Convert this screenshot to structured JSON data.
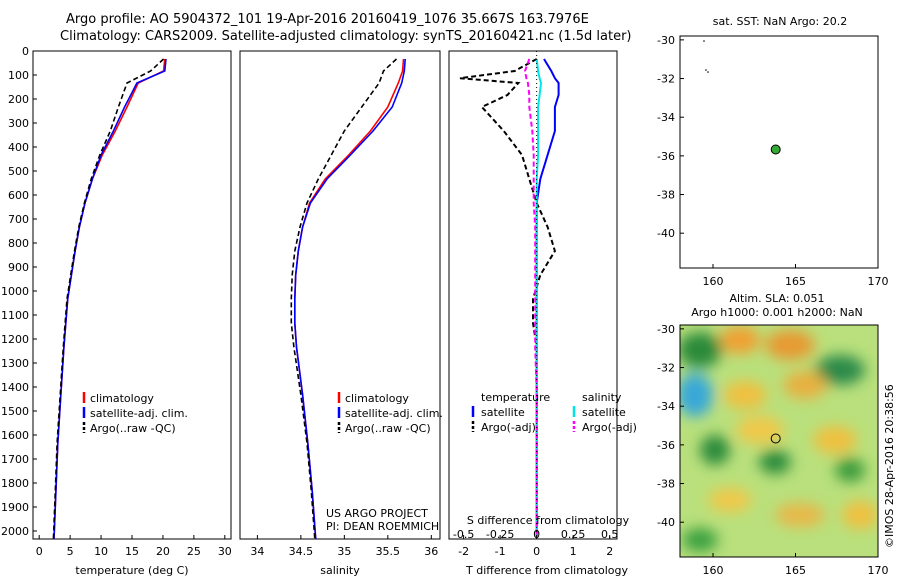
{
  "header": {
    "line1": "Argo profile: AO 5904372_101 19-Apr-2016 20160419_1076 35.667S 163.7976E",
    "line2": "Climatology: CARS2009. Satellite-adjusted climatology: synTS_20160421.nc (1.5d later)"
  },
  "depth_ticks": [
    "0",
    "100",
    "200",
    "300",
    "400",
    "500",
    "600",
    "700",
    "800",
    "900",
    "1000",
    "1100",
    "1200",
    "1300",
    "1400",
    "1500",
    "1600",
    "1700",
    "1800",
    "1900",
    "2000"
  ],
  "legend": {
    "clim": "climatology",
    "sat": "satellite-adj. clim.",
    "argo": "Argo(..raw -QC)",
    "temperature_head": "temperature",
    "salinity_head": "salinity",
    "satellite": "satellite",
    "argo_adj": "Argo(-adj)"
  },
  "credit": {
    "line1": "US ARGO PROJECT",
    "line2": "PI: DEAN ROEMMICH"
  },
  "map1_title": "sat. SST: NaN Argo: 20.2",
  "map2_title1": "Altim. SLA: 0.051",
  "map2_title2": "Argo h1000: 0.001 h2000: NaN",
  "watermark": "©IMOS 28-Apr-2016 20:38:56",
  "colors": {
    "clim": "#ff0000",
    "sat": "#0000ff",
    "argo": "#000000",
    "sal_sat": "#00e5e5",
    "sal_argo": "#ff00ff",
    "marker": "#33aa33"
  },
  "chart_data": [
    {
      "type": "line",
      "title": "",
      "xlabel": "temperature (deg C)",
      "ylabel": "",
      "xlim": [
        -1,
        31
      ],
      "ylim": [
        2000,
        0
      ],
      "xticks": [
        "0",
        "5",
        "10",
        "15",
        "20",
        "25",
        "30"
      ],
      "depth": [
        0,
        50,
        100,
        200,
        300,
        400,
        500,
        600,
        700,
        800,
        900,
        1000,
        1200,
        1400,
        1600,
        1800,
        2000
      ],
      "series": [
        {
          "name": "climatology",
          "values": [
            20.3,
            20.1,
            16.0,
            14.2,
            12.3,
            10.2,
            8.6,
            7.4,
            6.5,
            5.8,
            5.2,
            4.6,
            4.0,
            3.5,
            3.0,
            2.7,
            2.4
          ]
        },
        {
          "name": "satellite-adj. clim.",
          "values": [
            20.5,
            20.3,
            15.8,
            13.8,
            12.0,
            10.0,
            8.6,
            7.4,
            6.5,
            5.8,
            5.2,
            4.6,
            4.0,
            3.5,
            3.0,
            2.7,
            2.4
          ]
        },
        {
          "name": "Argo(..raw -QC)",
          "values": [
            20.1,
            18.0,
            14.2,
            12.8,
            11.5,
            9.8,
            8.4,
            7.3,
            6.4,
            5.7,
            5.1,
            4.5,
            3.9,
            3.4,
            2.9,
            2.6,
            2.3
          ]
        }
      ]
    },
    {
      "type": "line",
      "title": "",
      "xlabel": "salinity",
      "ylabel": "",
      "xlim": [
        33.8,
        36.1
      ],
      "ylim": [
        2000,
        0
      ],
      "xticks": [
        "34",
        "34.5",
        "35",
        "35.5",
        "36"
      ],
      "depth": [
        0,
        50,
        100,
        200,
        300,
        400,
        500,
        600,
        700,
        800,
        900,
        1000,
        1100,
        1200,
        1400,
        1600,
        1800,
        2000
      ],
      "series": [
        {
          "name": "climatology",
          "values": [
            35.68,
            35.67,
            35.62,
            35.5,
            35.3,
            35.05,
            34.78,
            34.6,
            34.52,
            34.47,
            34.44,
            34.43,
            34.43,
            34.45,
            34.52,
            34.58,
            34.63,
            34.67
          ]
        },
        {
          "name": "satellite-adj. clim.",
          "values": [
            35.7,
            35.69,
            35.66,
            35.55,
            35.33,
            35.07,
            34.8,
            34.61,
            34.52,
            34.47,
            34.44,
            34.43,
            34.43,
            34.45,
            34.52,
            34.58,
            34.63,
            34.67
          ]
        },
        {
          "name": "Argo(..raw -QC)",
          "values": [
            35.6,
            35.45,
            35.4,
            35.2,
            35.0,
            34.85,
            34.7,
            34.57,
            34.49,
            34.43,
            34.4,
            34.39,
            34.39,
            34.42,
            34.5,
            34.57,
            34.62,
            34.66
          ]
        }
      ]
    },
    {
      "type": "line",
      "title": "",
      "xlabel": "T difference from climatology",
      "xlabel_top": "S difference from climatology",
      "ylabel": "",
      "xlim": [
        -2.4,
        2.2
      ],
      "ylim": [
        2000,
        0
      ],
      "xticks": [
        "-2",
        "-1",
        "0",
        "1",
        "2"
      ],
      "xticks_top": [
        "-0.5",
        "-0.25",
        "0",
        "0.25",
        "0.5"
      ],
      "depth": [
        0,
        50,
        80,
        100,
        150,
        200,
        300,
        400,
        500,
        600,
        700,
        800,
        900,
        1000,
        1100,
        1200,
        1400,
        1600,
        1800,
        2000
      ],
      "series": [
        {
          "name": "temperature satellite",
          "values": [
            0.2,
            0.4,
            0.5,
            0.6,
            0.6,
            0.5,
            0.5,
            0.3,
            0.1,
            0.0,
            0.0,
            0.0,
            0.0,
            0.0,
            0.0,
            0.0,
            0.0,
            0.0,
            0.0,
            0.0
          ]
        },
        {
          "name": "temperature Argo(-adj)",
          "values": [
            0.0,
            -0.6,
            -2.1,
            -0.5,
            -0.8,
            -1.5,
            -0.9,
            -0.4,
            -0.2,
            0.0,
            0.3,
            0.5,
            0.1,
            -0.1,
            -0.1,
            0.0,
            0.0,
            0.0,
            0.0,
            0.0
          ]
        },
        {
          "name": "salinity satellite",
          "values": [
            0.0,
            0.01,
            0.02,
            0.03,
            0.02,
            0.01,
            0.01,
            0.01,
            0.0,
            0.0,
            0.0,
            0.0,
            0.0,
            0.0,
            0.0,
            0.0,
            0.0,
            0.0,
            0.0,
            0.0
          ]
        },
        {
          "name": "salinity Argo(-adj)",
          "values": [
            -0.05,
            -0.08,
            -0.07,
            -0.06,
            -0.05,
            -0.05,
            -0.03,
            -0.02,
            -0.02,
            -0.02,
            -0.01,
            -0.01,
            -0.01,
            -0.01,
            -0.01,
            -0.01,
            0.0,
            0.0,
            0.0,
            0.0
          ]
        }
      ]
    },
    {
      "type": "scatter",
      "title": "sat. SST: NaN Argo: 20.2",
      "xlim": [
        158,
        170
      ],
      "ylim": [
        -41.8,
        -29.8
      ],
      "xticks": [
        "160",
        "165",
        "170"
      ],
      "yticks": [
        "-30",
        "-32",
        "-34",
        "-36",
        "-38",
        "-40"
      ],
      "points": [
        {
          "lon": 163.8,
          "lat": -35.67
        }
      ]
    },
    {
      "type": "heatmap",
      "title": "Altim. SLA: 0.051",
      "xlim": [
        158,
        170
      ],
      "ylim": [
        -41.8,
        -29.8
      ],
      "xticks": [
        "160",
        "165",
        "170"
      ],
      "yticks": [
        "-30",
        "-32",
        "-34",
        "-36",
        "-38",
        "-40"
      ],
      "points": [
        {
          "lon": 163.8,
          "lat": -35.67
        }
      ]
    }
  ]
}
